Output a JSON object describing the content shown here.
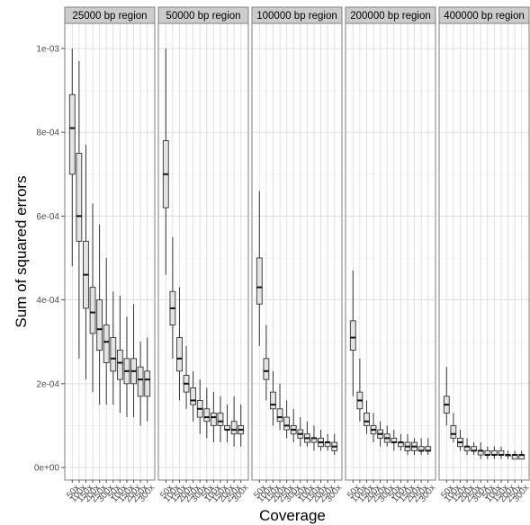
{
  "chart_data": {
    "type": "boxplot",
    "xlabel": "Coverage",
    "ylabel": "Sum of squared errors",
    "ylim": [
      -3e-05,
      0.00106
    ],
    "y_ticks": [
      0,
      0.0002,
      0.0004,
      0.0006,
      0.0008,
      0.001
    ],
    "y_tick_labels": [
      "0e+00",
      "2e-04",
      "4e-04",
      "6e-04",
      "8e-04",
      "1e-03"
    ],
    "categories": [
      "50x",
      "100x",
      "150x",
      "200x",
      "250x",
      "300x",
      "50x",
      "100x",
      "150x",
      "200x",
      "250x",
      "300x"
    ],
    "grid": true,
    "panels": [
      {
        "label": "25000 bp region",
        "boxes": [
          {
            "whisker_low": 0.00048,
            "q1": 0.0007,
            "median": 0.00081,
            "q3": 0.00089,
            "whisker_high": 0.001
          },
          {
            "whisker_low": 0.00026,
            "q1": 0.00054,
            "median": 0.0006,
            "q3": 0.00075,
            "whisker_high": 0.00097
          },
          {
            "whisker_low": 0.00021,
            "q1": 0.00038,
            "median": 0.00046,
            "q3": 0.00054,
            "whisker_high": 0.00077
          },
          {
            "whisker_low": 0.00018,
            "q1": 0.00032,
            "median": 0.00037,
            "q3": 0.00043,
            "whisker_high": 0.00063
          },
          {
            "whisker_low": 0.00015,
            "q1": 0.00028,
            "median": 0.00033,
            "q3": 0.0004,
            "whisker_high": 0.00058
          },
          {
            "whisker_low": 0.00015,
            "q1": 0.00025,
            "median": 0.0003,
            "q3": 0.00034,
            "whisker_high": 0.0005
          },
          {
            "whisker_low": 0.00015,
            "q1": 0.00023,
            "median": 0.00026,
            "q3": 0.00031,
            "whisker_high": 0.00042
          },
          {
            "whisker_low": 0.00013,
            "q1": 0.00021,
            "median": 0.00025,
            "q3": 0.00028,
            "whisker_high": 0.00041
          },
          {
            "whisker_low": 0.00012,
            "q1": 0.0002,
            "median": 0.00023,
            "q3": 0.00026,
            "whisker_high": 0.00036
          },
          {
            "whisker_low": 0.00012,
            "q1": 0.0002,
            "median": 0.00023,
            "q3": 0.00026,
            "whisker_high": 0.00039
          },
          {
            "whisker_low": 0.0001,
            "q1": 0.00017,
            "median": 0.00021,
            "q3": 0.00024,
            "whisker_high": 0.0003
          },
          {
            "whisker_low": 0.00011,
            "q1": 0.00017,
            "median": 0.00021,
            "q3": 0.00023,
            "whisker_high": 0.00031
          }
        ]
      },
      {
        "label": "50000 bp region",
        "boxes": [
          {
            "whisker_low": 0.00046,
            "q1": 0.00062,
            "median": 0.0007,
            "q3": 0.00078,
            "whisker_high": 0.001
          },
          {
            "whisker_low": 0.00026,
            "q1": 0.00034,
            "median": 0.00038,
            "q3": 0.00042,
            "whisker_high": 0.00055
          },
          {
            "whisker_low": 0.00016,
            "q1": 0.00023,
            "median": 0.00026,
            "q3": 0.00031,
            "whisker_high": 0.00043
          },
          {
            "whisker_low": 0.00014,
            "q1": 0.00018,
            "median": 0.0002,
            "q3": 0.00022,
            "whisker_high": 0.00029
          },
          {
            "whisker_low": 0.00011,
            "q1": 0.00015,
            "median": 0.00016,
            "q3": 0.00019,
            "whisker_high": 0.00023
          },
          {
            "whisker_low": 8e-05,
            "q1": 0.00012,
            "median": 0.00014,
            "q3": 0.00016,
            "whisker_high": 0.00021
          },
          {
            "whisker_low": 7e-05,
            "q1": 0.00011,
            "median": 0.00012,
            "q3": 0.00014,
            "whisker_high": 0.00019
          },
          {
            "whisker_low": 6e-05,
            "q1": 0.0001,
            "median": 0.00012,
            "q3": 0.00013,
            "whisker_high": 0.00018
          },
          {
            "whisker_low": 6e-05,
            "q1": 0.0001,
            "median": 0.00011,
            "q3": 0.00013,
            "whisker_high": 0.00017
          },
          {
            "whisker_low": 6e-05,
            "q1": 9e-05,
            "median": 9e-05,
            "q3": 0.0001,
            "whisker_high": 0.00015
          },
          {
            "whisker_low": 5e-05,
            "q1": 8e-05,
            "median": 9e-05,
            "q3": 0.00011,
            "whisker_high": 0.00017
          },
          {
            "whisker_low": 5e-05,
            "q1": 8e-05,
            "median": 9e-05,
            "q3": 0.0001,
            "whisker_high": 0.00015
          }
        ]
      },
      {
        "label": "100000 bp region",
        "boxes": [
          {
            "whisker_low": 0.00029,
            "q1": 0.00039,
            "median": 0.00043,
            "q3": 0.0005,
            "whisker_high": 0.00066
          },
          {
            "whisker_low": 0.00016,
            "q1": 0.00021,
            "median": 0.00023,
            "q3": 0.00026,
            "whisker_high": 0.00034
          },
          {
            "whisker_low": 0.0001,
            "q1": 0.00014,
            "median": 0.00015,
            "q3": 0.00018,
            "whisker_high": 0.00023
          },
          {
            "whisker_low": 9e-05,
            "q1": 0.00011,
            "median": 0.00012,
            "q3": 0.00014,
            "whisker_high": 0.0002
          },
          {
            "whisker_low": 7e-05,
            "q1": 9e-05,
            "median": 0.0001,
            "q3": 0.00012,
            "whisker_high": 0.00016
          },
          {
            "whisker_low": 6e-05,
            "q1": 8e-05,
            "median": 9e-05,
            "q3": 0.0001,
            "whisker_high": 0.00014
          },
          {
            "whisker_low": 5e-05,
            "q1": 7e-05,
            "median": 8e-05,
            "q3": 9e-05,
            "whisker_high": 0.00012
          },
          {
            "whisker_low": 5e-05,
            "q1": 6e-05,
            "median": 7e-05,
            "q3": 8e-05,
            "whisker_high": 0.00011
          },
          {
            "whisker_low": 4e-05,
            "q1": 6e-05,
            "median": 7e-05,
            "q3": 7e-05,
            "whisker_high": 0.0001
          },
          {
            "whisker_low": 4e-05,
            "q1": 5e-05,
            "median": 6e-05,
            "q3": 7e-05,
            "whisker_high": 9e-05
          },
          {
            "whisker_low": 4e-05,
            "q1": 5e-05,
            "median": 6e-05,
            "q3": 6e-05,
            "whisker_high": 8e-05
          },
          {
            "whisker_low": 3e-05,
            "q1": 4e-05,
            "median": 5e-05,
            "q3": 6e-05,
            "whisker_high": 8e-05
          }
        ]
      },
      {
        "label": "200000 bp region",
        "boxes": [
          {
            "whisker_low": 0.00017,
            "q1": 0.00028,
            "median": 0.00031,
            "q3": 0.00035,
            "whisker_high": 0.00047
          },
          {
            "whisker_low": 0.00011,
            "q1": 0.00014,
            "median": 0.00016,
            "q3": 0.00018,
            "whisker_high": 0.00026
          },
          {
            "whisker_low": 8e-05,
            "q1": 0.0001,
            "median": 0.00011,
            "q3": 0.00013,
            "whisker_high": 0.00016
          },
          {
            "whisker_low": 6e-05,
            "q1": 8e-05,
            "median": 9e-05,
            "q3": 0.0001,
            "whisker_high": 0.00013
          },
          {
            "whisker_low": 5e-05,
            "q1": 7e-05,
            "median": 8e-05,
            "q3": 9e-05,
            "whisker_high": 0.00011
          },
          {
            "whisker_low": 5e-05,
            "q1": 6e-05,
            "median": 7e-05,
            "q3": 8e-05,
            "whisker_high": 0.0001
          },
          {
            "whisker_low": 4e-05,
            "q1": 6e-05,
            "median": 6e-05,
            "q3": 7e-05,
            "whisker_high": 9e-05
          },
          {
            "whisker_low": 4e-05,
            "q1": 5e-05,
            "median": 6e-05,
            "q3": 6e-05,
            "whisker_high": 8e-05
          },
          {
            "whisker_low": 3e-05,
            "q1": 4e-05,
            "median": 5e-05,
            "q3": 6e-05,
            "whisker_high": 8e-05
          },
          {
            "whisker_low": 3e-05,
            "q1": 4e-05,
            "median": 5e-05,
            "q3": 6e-05,
            "whisker_high": 7e-05
          },
          {
            "whisker_low": 3e-05,
            "q1": 4e-05,
            "median": 4e-05,
            "q3": 5e-05,
            "whisker_high": 7e-05
          },
          {
            "whisker_low": 3e-05,
            "q1": 4e-05,
            "median": 4e-05,
            "q3": 5e-05,
            "whisker_high": 7e-05
          }
        ]
      },
      {
        "label": "400000 bp region",
        "boxes": [
          {
            "whisker_low": 0.0001,
            "q1": 0.00013,
            "median": 0.00015,
            "q3": 0.00017,
            "whisker_high": 0.00024
          },
          {
            "whisker_low": 6e-05,
            "q1": 7e-05,
            "median": 8e-05,
            "q3": 0.0001,
            "whisker_high": 0.00013
          },
          {
            "whisker_low": 4e-05,
            "q1": 5e-05,
            "median": 6e-05,
            "q3": 7e-05,
            "whisker_high": 9e-05
          },
          {
            "whisker_low": 3e-05,
            "q1": 4e-05,
            "median": 5e-05,
            "q3": 5e-05,
            "whisker_high": 7e-05
          },
          {
            "whisker_low": 3e-05,
            "q1": 4e-05,
            "median": 4e-05,
            "q3": 5e-05,
            "whisker_high": 6e-05
          },
          {
            "whisker_low": 2e-05,
            "q1": 3e-05,
            "median": 4e-05,
            "q3": 4e-05,
            "whisker_high": 6e-05
          },
          {
            "whisker_low": 2e-05,
            "q1": 3e-05,
            "median": 3e-05,
            "q3": 4e-05,
            "whisker_high": 5e-05
          },
          {
            "whisker_low": 2e-05,
            "q1": 3e-05,
            "median": 3e-05,
            "q3": 4e-05,
            "whisker_high": 5e-05
          },
          {
            "whisker_low": 2e-05,
            "q1": 3e-05,
            "median": 3e-05,
            "q3": 4e-05,
            "whisker_high": 5e-05
          },
          {
            "whisker_low": 2e-05,
            "q1": 3e-05,
            "median": 3e-05,
            "q3": 3e-05,
            "whisker_high": 4e-05
          },
          {
            "whisker_low": 2e-05,
            "q1": 2e-05,
            "median": 3e-05,
            "q3": 3e-05,
            "whisker_high": 4e-05
          },
          {
            "whisker_low": 2e-05,
            "q1": 2e-05,
            "median": 3e-05,
            "q3": 3e-05,
            "whisker_high": 4e-05
          }
        ]
      }
    ]
  },
  "colors": {
    "box_fill": "#e3e3e3",
    "strip_fill": "#cccccc",
    "grid_major": "#dcdcdc",
    "grid_minor": "#efefef",
    "panel_border": "#7f7f7f",
    "tick_label": "#4d4d4d"
  }
}
